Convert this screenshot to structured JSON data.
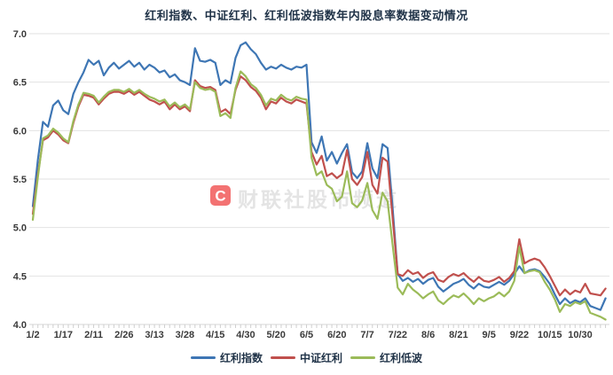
{
  "title": "红利指数、中证红利、红利低波指数年内股息率数据变动情况",
  "watermark": {
    "logo": "C",
    "text": "财联社股市频道"
  },
  "colors": {
    "title_text": "#1F3247",
    "axis_label": "#3A3A3A",
    "gridline": "#E2E2E2",
    "baseline": "#D5D5D5",
    "minor_tick": "#CFCFCF",
    "watermark_logo": "#F04F4F",
    "watermark_text": "#E2E2E2",
    "series_blue": "#3E76B4",
    "series_red": "#C0504D",
    "series_green": "#9BBB59"
  },
  "chart_data": {
    "type": "line",
    "title": "红利指数、中证红利、红利低波指数年内股息率数据变动情况",
    "xlabel": "",
    "ylabel": "",
    "ylim": [
      4.0,
      7.0
    ],
    "y_ticks": [
      "7.0",
      "6.5",
      "6.0",
      "5.5",
      "5.0",
      "4.5",
      "4.0"
    ],
    "grid": "horizontal",
    "legend_position": "bottom",
    "n_points": 114,
    "x_tick_every": 6,
    "x_tick_labels": [
      "1/2",
      "1/17",
      "2/11",
      "2/26",
      "3/13",
      "3/28",
      "4/15",
      "4/30",
      "5/20",
      "6/5",
      "6/20",
      "7/7",
      "7/22",
      "8/6",
      "8/21",
      "9/5",
      "9/22",
      "10/15",
      "10/30"
    ],
    "series": [
      {
        "name": "红利指数",
        "color": "#3E76B4",
        "values": [
          5.22,
          5.7,
          6.09,
          6.04,
          6.26,
          6.31,
          6.21,
          6.17,
          6.38,
          6.5,
          6.6,
          6.73,
          6.68,
          6.72,
          6.57,
          6.65,
          6.7,
          6.64,
          6.68,
          6.72,
          6.66,
          6.7,
          6.63,
          6.68,
          6.65,
          6.6,
          6.62,
          6.55,
          6.58,
          6.52,
          6.5,
          6.47,
          6.85,
          6.72,
          6.71,
          6.73,
          6.7,
          6.47,
          6.52,
          6.49,
          6.75,
          6.88,
          6.91,
          6.84,
          6.79,
          6.7,
          6.63,
          6.66,
          6.64,
          6.68,
          6.65,
          6.63,
          6.66,
          6.65,
          6.68,
          5.88,
          5.77,
          5.94,
          5.69,
          5.78,
          5.66,
          5.77,
          5.86,
          5.57,
          5.51,
          5.58,
          5.87,
          5.61,
          5.51,
          5.86,
          5.82,
          5.2,
          4.52,
          4.45,
          4.48,
          4.44,
          4.47,
          4.42,
          4.46,
          4.48,
          4.39,
          4.34,
          4.38,
          4.42,
          4.44,
          4.47,
          4.41,
          4.37,
          4.42,
          4.39,
          4.38,
          4.41,
          4.44,
          4.41,
          4.45,
          4.52,
          4.6,
          4.53,
          4.56,
          4.57,
          4.55,
          4.49,
          4.42,
          4.31,
          4.21,
          4.27,
          4.22,
          4.25,
          4.23,
          4.27,
          4.19,
          4.17,
          4.15,
          4.27
        ]
      },
      {
        "name": "中证红利",
        "color": "#C0504D",
        "values": [
          5.14,
          5.55,
          5.9,
          5.93,
          6.0,
          5.96,
          5.9,
          5.87,
          6.08,
          6.25,
          6.37,
          6.36,
          6.34,
          6.27,
          6.33,
          6.38,
          6.4,
          6.4,
          6.38,
          6.41,
          6.37,
          6.4,
          6.36,
          6.32,
          6.3,
          6.27,
          6.3,
          6.22,
          6.27,
          6.22,
          6.25,
          6.2,
          6.52,
          6.46,
          6.44,
          6.45,
          6.42,
          6.19,
          6.22,
          6.17,
          6.42,
          6.56,
          6.52,
          6.45,
          6.41,
          6.34,
          6.22,
          6.3,
          6.28,
          6.34,
          6.3,
          6.28,
          6.32,
          6.3,
          6.28,
          5.78,
          5.65,
          5.74,
          5.53,
          5.56,
          5.51,
          5.55,
          5.8,
          5.5,
          5.44,
          5.52,
          5.78,
          5.44,
          5.35,
          5.72,
          5.68,
          5.1,
          4.52,
          4.5,
          4.56,
          4.52,
          4.54,
          4.48,
          4.52,
          4.54,
          4.46,
          4.44,
          4.49,
          4.52,
          4.5,
          4.53,
          4.48,
          4.44,
          4.49,
          4.45,
          4.44,
          4.46,
          4.49,
          4.44,
          4.48,
          4.55,
          4.88,
          4.63,
          4.66,
          4.68,
          4.66,
          4.59,
          4.5,
          4.4,
          4.3,
          4.36,
          4.31,
          4.35,
          4.33,
          4.42,
          4.32,
          4.31,
          4.3,
          4.37
        ]
      },
      {
        "name": "红利低波",
        "color": "#9BBB59",
        "values": [
          5.08,
          5.52,
          5.92,
          5.95,
          6.02,
          5.98,
          5.92,
          5.88,
          6.1,
          6.27,
          6.39,
          6.38,
          6.36,
          6.29,
          6.35,
          6.4,
          6.42,
          6.42,
          6.4,
          6.43,
          6.39,
          6.42,
          6.38,
          6.35,
          6.33,
          6.3,
          6.32,
          6.25,
          6.29,
          6.24,
          6.27,
          6.22,
          6.5,
          6.44,
          6.42,
          6.43,
          6.4,
          6.15,
          6.18,
          6.13,
          6.44,
          6.61,
          6.56,
          6.48,
          6.44,
          6.37,
          6.26,
          6.33,
          6.31,
          6.37,
          6.33,
          6.31,
          6.35,
          6.33,
          6.32,
          5.72,
          5.54,
          5.58,
          5.44,
          5.4,
          5.27,
          5.32,
          5.58,
          5.25,
          5.21,
          5.28,
          5.46,
          5.18,
          5.09,
          5.36,
          5.27,
          4.82,
          4.38,
          4.31,
          4.42,
          4.36,
          4.32,
          4.27,
          4.31,
          4.34,
          4.25,
          4.21,
          4.26,
          4.3,
          4.28,
          4.32,
          4.27,
          4.21,
          4.27,
          4.24,
          4.27,
          4.29,
          4.33,
          4.29,
          4.34,
          4.45,
          4.8,
          4.53,
          4.55,
          4.56,
          4.54,
          4.44,
          4.36,
          4.26,
          4.13,
          4.21,
          4.19,
          4.23,
          4.21,
          4.24,
          4.12,
          4.1,
          4.08,
          4.05
        ]
      }
    ]
  }
}
